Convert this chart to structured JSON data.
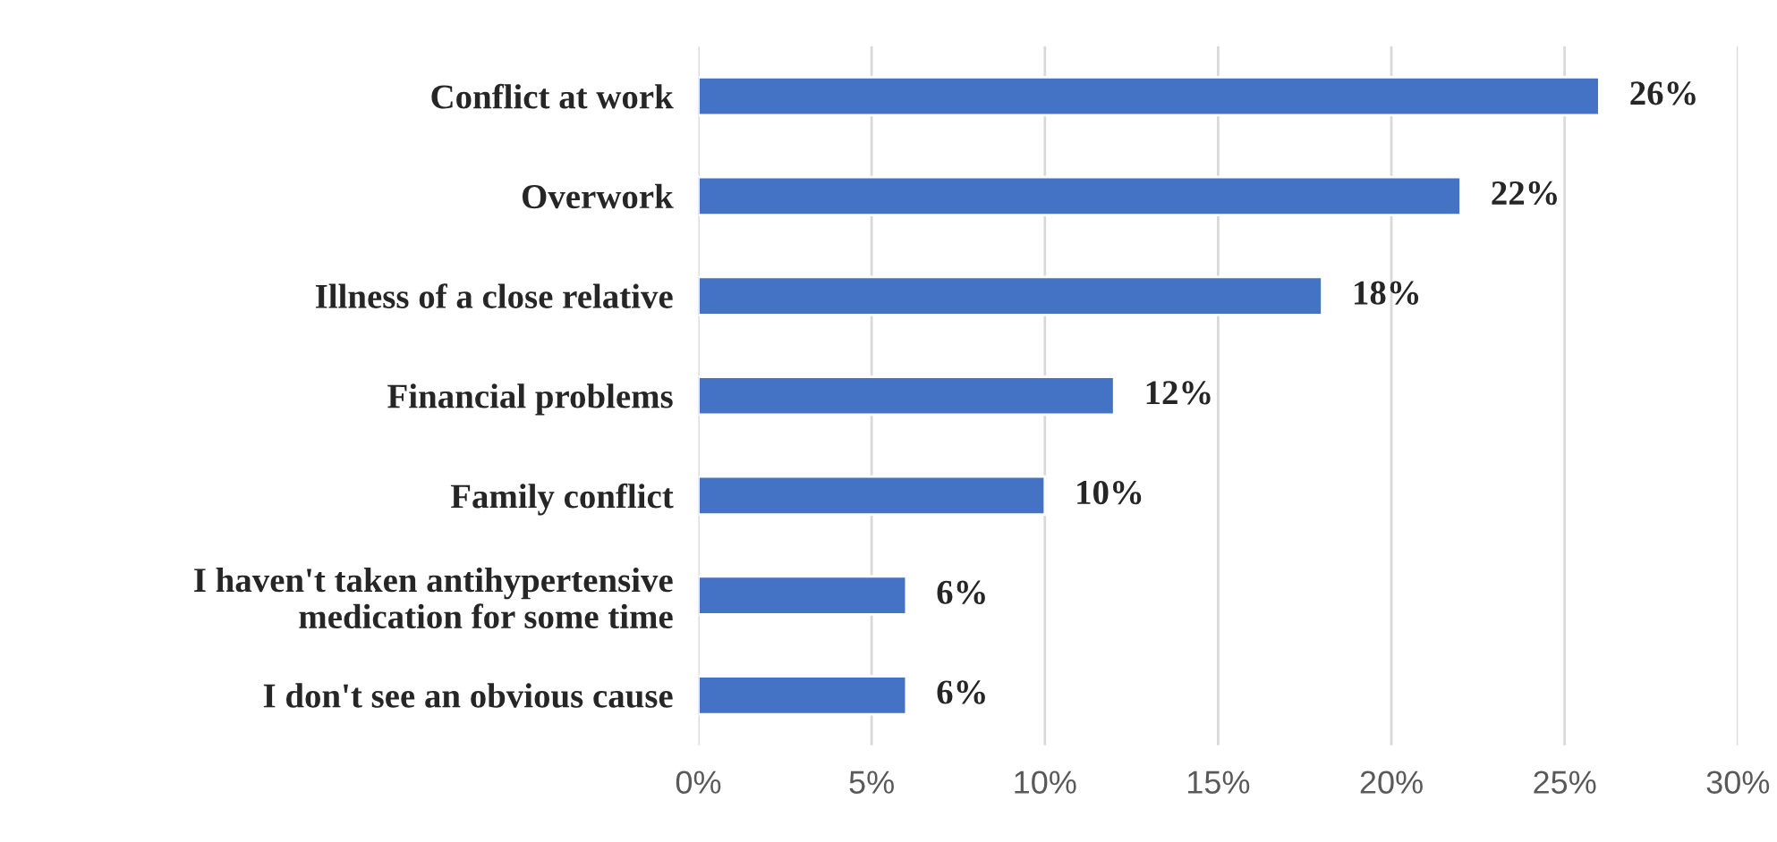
{
  "chart_data": {
    "type": "bar",
    "orientation": "horizontal",
    "categories": [
      "Conflict at work",
      "Overwork",
      "Illness of a close relative",
      "Financial problems",
      "Family conflict",
      "I haven't taken antihypertensive\nmedication for some time",
      "I don't see an obvious cause"
    ],
    "series": [
      {
        "color": "#4472c4",
        "values": [
          26,
          22,
          18,
          12,
          10,
          6,
          6
        ],
        "value_labels": [
          "26%",
          "22%",
          "18%",
          "12%",
          "10%",
          "6%",
          "6%"
        ]
      }
    ],
    "xlim": [
      0,
      30
    ],
    "xticks": [
      {
        "value": 0,
        "label": "0%"
      },
      {
        "value": 5,
        "label": "5%"
      },
      {
        "value": 10,
        "label": "10%"
      },
      {
        "value": 15,
        "label": "15%"
      },
      {
        "value": 20,
        "label": "20%"
      },
      {
        "value": 25,
        "label": "25%"
      },
      {
        "value": 30,
        "label": "30%"
      }
    ],
    "grid": "x"
  }
}
